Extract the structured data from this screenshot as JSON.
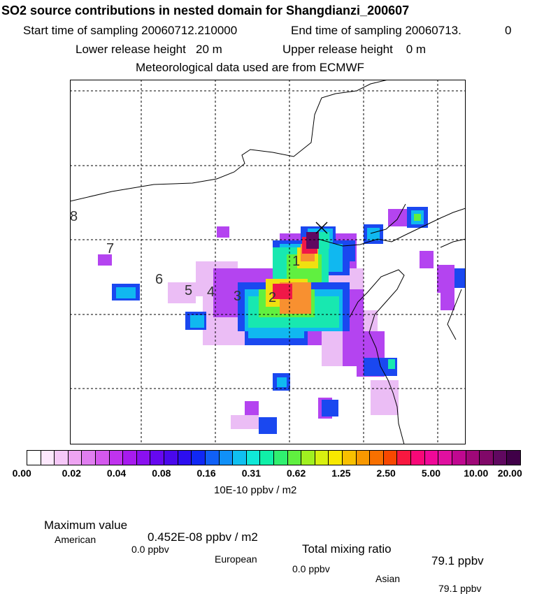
{
  "title": "SO2 source contributions in nested domain for Shangdianzi_200607",
  "sampling": {
    "start_label": "Start time of sampling 20060712.210000",
    "end_label": "End time of sampling 20060713.",
    "end_suffix": "0"
  },
  "release": {
    "lower_label": "Lower release height   20 m",
    "upper_label": "Upper release height    0 m"
  },
  "meteo_label": "Meteorological data used are from ECMWF",
  "map": {
    "track_labels": [
      "1",
      "2",
      "3",
      "4",
      "5",
      "6",
      "7",
      "8"
    ],
    "receptor_marker": "x"
  },
  "colorbar": {
    "tick_labels": [
      "0.00",
      "0.02",
      "0.04",
      "0.08",
      "0.16",
      "0.31",
      "0.62",
      "1.25",
      "2.50",
      "5.00",
      "10.00",
      "20.00"
    ],
    "colors": [
      "#ffffff",
      "#fde8fd",
      "#f6c8f8",
      "#eea4f2",
      "#e07ef0",
      "#d458ee",
      "#c033ef",
      "#a71bef",
      "#8a10f0",
      "#6608f0",
      "#4a08ec",
      "#2c0ef0",
      "#1028f5",
      "#1060f7",
      "#1090f8",
      "#10c0f0",
      "#10e8d8",
      "#10f0a8",
      "#30f070",
      "#60f040",
      "#a0f020",
      "#d8f010",
      "#f8e800",
      "#f8c000",
      "#f89800",
      "#f87000",
      "#f84800",
      "#f81840",
      "#f80878",
      "#f00898",
      "#e010a0",
      "#c00890",
      "#a00878",
      "#800868",
      "#600860",
      "#400048"
    ],
    "units": "10E-10 ppbv / m2"
  },
  "stats": {
    "max_label": "Maximum value",
    "max_value": "0.452E-08 ppbv / m2",
    "total_label": "Total mixing ratio",
    "total_value": "79.1 ppbv",
    "regions": [
      {
        "name": "American",
        "value": "0.0 ppbv"
      },
      {
        "name": "European",
        "value": "0.0 ppbv"
      },
      {
        "name": "Asian",
        "value": "79.1 ppbv"
      }
    ]
  }
}
